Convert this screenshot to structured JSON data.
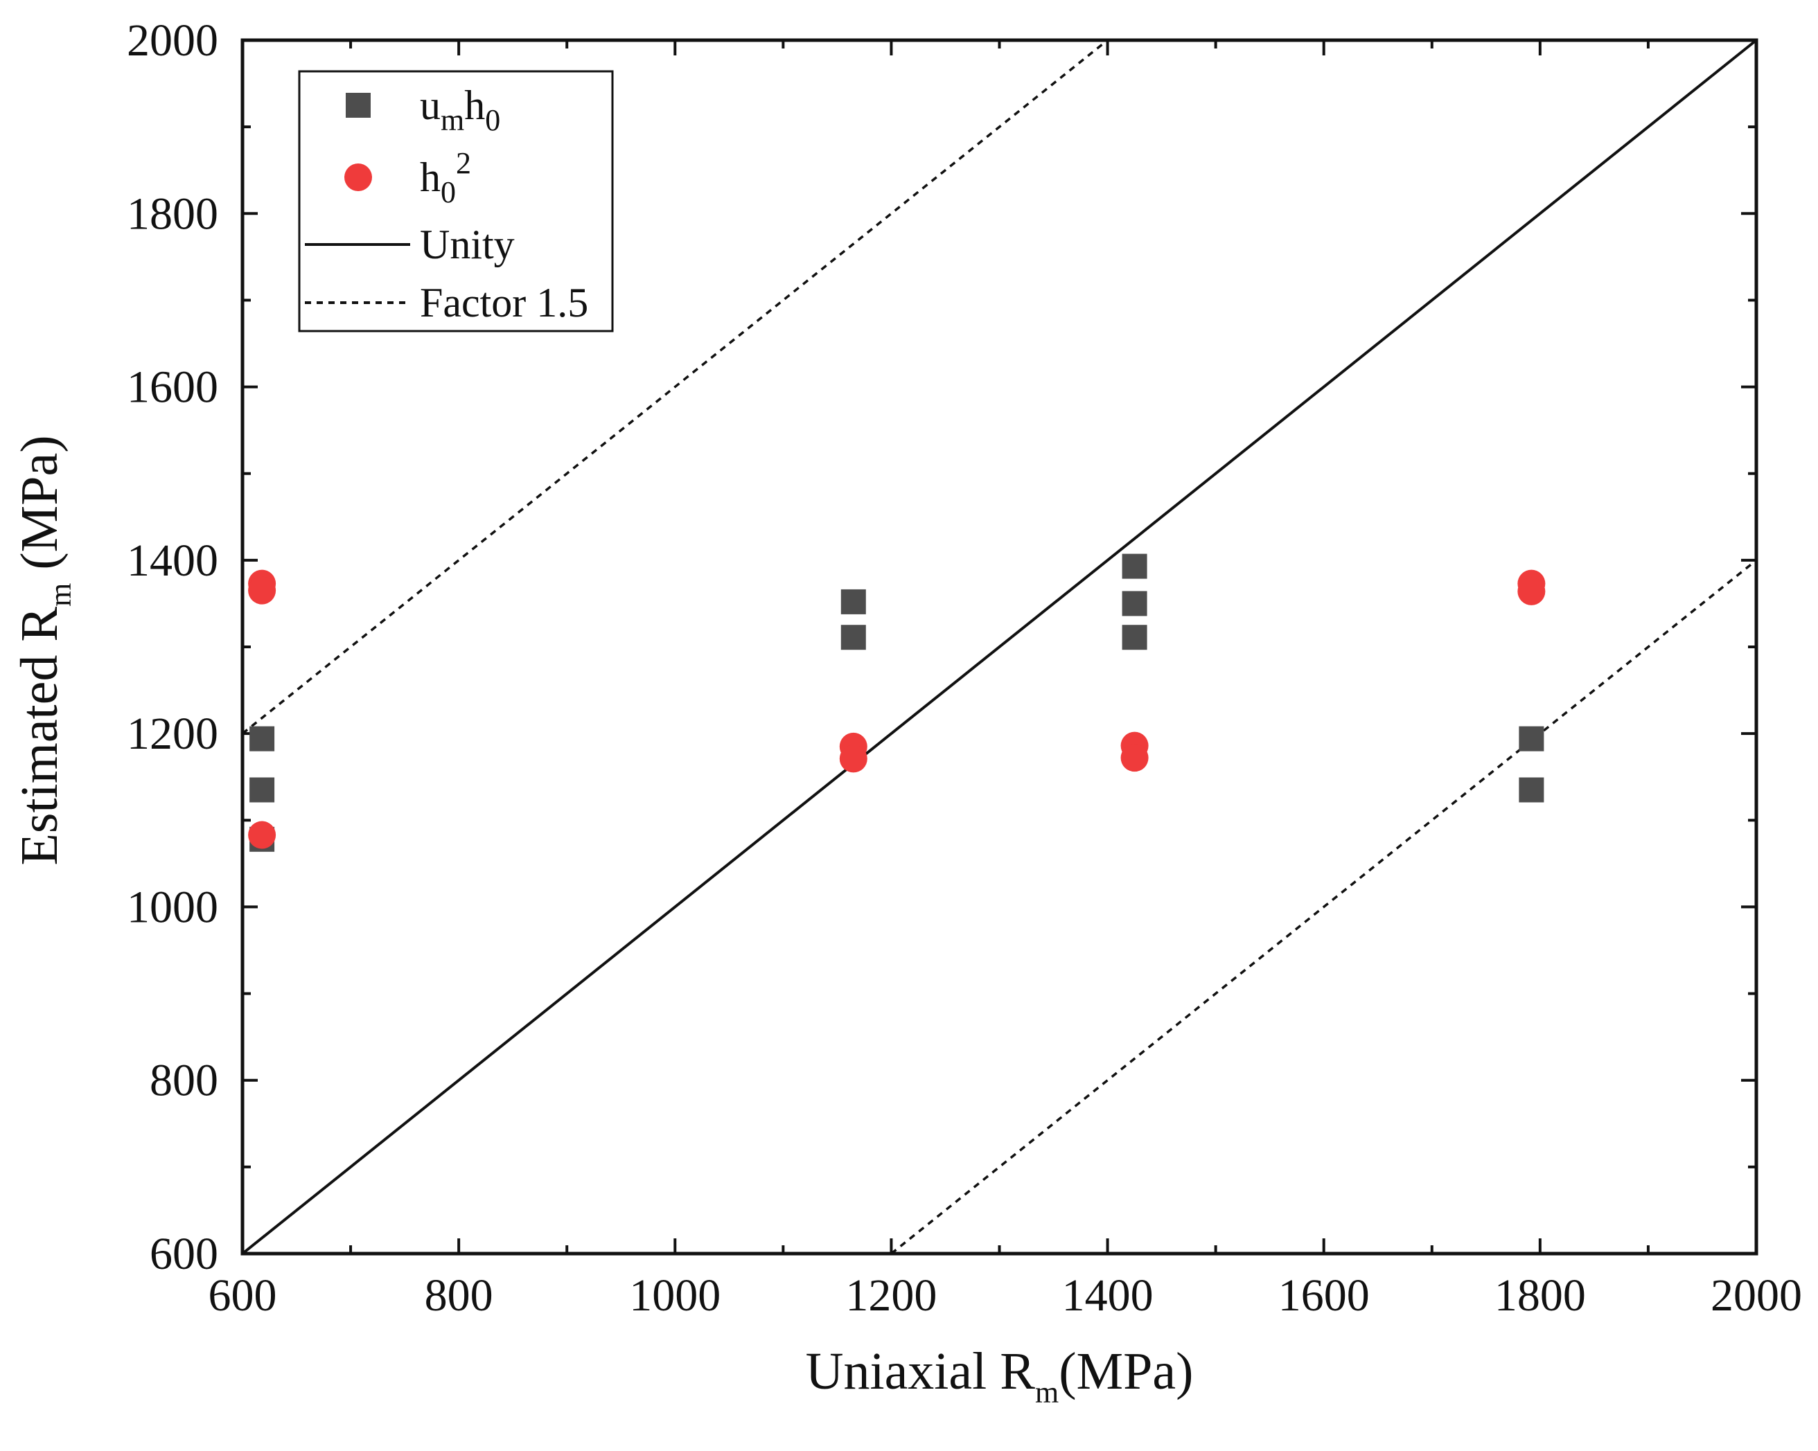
{
  "chart_data": {
    "type": "scatter",
    "title": "",
    "xlabel": {
      "main": "Uniaxial R",
      "sub": "m",
      "unit": "(MPa)"
    },
    "ylabel": {
      "main": "Estimated R",
      "sub": "m",
      "unit": " (MPa)"
    },
    "xlim": [
      600,
      2000
    ],
    "ylim": [
      600,
      2000
    ],
    "x_ticks": [
      600,
      800,
      1000,
      1200,
      1400,
      1600,
      1800,
      2000
    ],
    "y_ticks": [
      600,
      800,
      1000,
      1200,
      1400,
      1600,
      1800,
      2000
    ],
    "x_tick_labels": [
      "600",
      "800",
      "1000",
      "1200",
      "1400",
      "1600",
      "1800",
      "2000"
    ],
    "y_tick_labels": [
      "600",
      "800",
      "1000",
      "1200",
      "1400",
      "1600",
      "1800",
      "2000"
    ],
    "legend_position": "top-left",
    "series": [
      {
        "name": "u_m h_0",
        "label_parts": [
          {
            "text": "u",
            "style": "normal"
          },
          {
            "text": "m",
            "style": "sub"
          },
          {
            "text": "h",
            "style": "normal"
          },
          {
            "text": "0",
            "style": "sub"
          }
        ],
        "marker": "square",
        "color": "#4d4d4d",
        "points": [
          {
            "x": 618,
            "y": 1194
          },
          {
            "x": 618,
            "y": 1135
          },
          {
            "x": 618,
            "y": 1078
          },
          {
            "x": 1165,
            "y": 1352
          },
          {
            "x": 1165,
            "y": 1311
          },
          {
            "x": 1425,
            "y": 1393
          },
          {
            "x": 1425,
            "y": 1350
          },
          {
            "x": 1425,
            "y": 1311
          },
          {
            "x": 1792,
            "y": 1194
          },
          {
            "x": 1792,
            "y": 1135
          }
        ]
      },
      {
        "name": "h_0^2",
        "label_parts": [
          {
            "text": "h",
            "style": "normal"
          },
          {
            "text": "0",
            "style": "sub"
          },
          {
            "text": "2",
            "style": "sup"
          }
        ],
        "marker": "circle",
        "color": "#ef3b3b",
        "points": [
          {
            "x": 618,
            "y": 1373
          },
          {
            "x": 618,
            "y": 1365
          },
          {
            "x": 618,
            "y": 1083
          },
          {
            "x": 1165,
            "y": 1185
          },
          {
            "x": 1165,
            "y": 1171
          },
          {
            "x": 1425,
            "y": 1186
          },
          {
            "x": 1425,
            "y": 1172
          },
          {
            "x": 1792,
            "y": 1373
          },
          {
            "x": 1792,
            "y": 1364
          }
        ]
      }
    ],
    "lines": [
      {
        "name": "Unity",
        "style": "solid",
        "color": "#111111",
        "points": [
          {
            "x": 600,
            "y": 600
          },
          {
            "x": 2000,
            "y": 2000
          }
        ]
      },
      {
        "name": "Factor 1.5",
        "style": "dotted",
        "color": "#111111",
        "points": [
          {
            "x": 600,
            "y": 1200
          },
          {
            "x": 1400,
            "y": 2000
          }
        ]
      },
      {
        "name": "Factor 1.5 lower",
        "style": "dotted",
        "color": "#111111",
        "points": [
          {
            "x": 1200,
            "y": 600
          },
          {
            "x": 2000,
            "y": 1400
          }
        ]
      }
    ],
    "legend": [
      {
        "type": "marker",
        "series": 0
      },
      {
        "type": "marker",
        "series": 1
      },
      {
        "type": "line",
        "label": "Unity",
        "style": "solid"
      },
      {
        "type": "line",
        "label": "Factor 1.5",
        "style": "dotted"
      }
    ]
  }
}
